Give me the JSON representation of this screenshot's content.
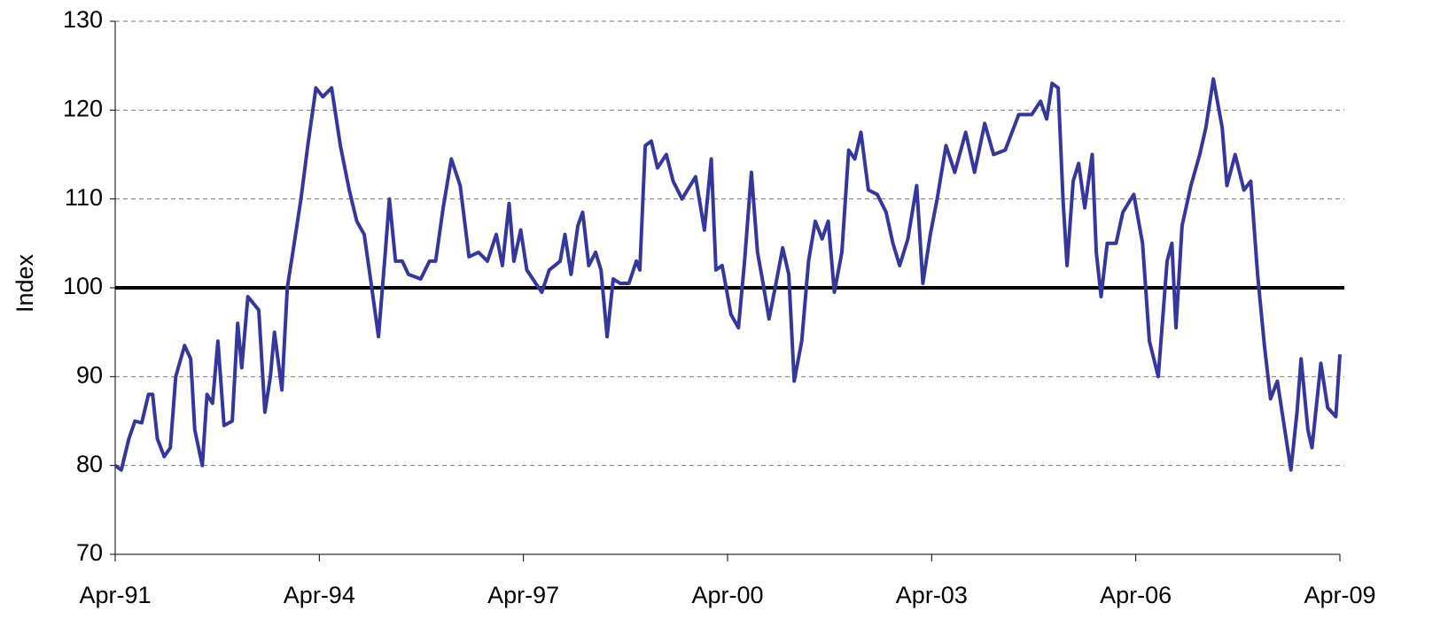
{
  "chart_data": {
    "type": "line",
    "y_label": "Index",
    "x": [
      1991.25,
      1991.34,
      1991.45,
      1991.54,
      1991.64,
      1991.74,
      1991.8,
      1991.87,
      1991.97,
      1992.06,
      1992.14,
      1992.27,
      1992.36,
      1992.42,
      1992.53,
      1992.6,
      1992.68,
      1992.76,
      1992.85,
      1992.97,
      1993.05,
      1993.11,
      1993.2,
      1993.36,
      1993.45,
      1993.53,
      1993.59,
      1993.7,
      1993.78,
      1993.87,
      1993.98,
      1994.08,
      1994.2,
      1994.3,
      1994.43,
      1994.56,
      1994.69,
      1994.8,
      1994.91,
      1995.02,
      1995.12,
      1995.22,
      1995.28,
      1995.37,
      1995.47,
      1995.56,
      1995.74,
      1995.87,
      1995.96,
      1996.07,
      1996.19,
      1996.32,
      1996.45,
      1996.59,
      1996.72,
      1996.85,
      1996.94,
      1997.04,
      1997.11,
      1997.21,
      1997.3,
      1997.43,
      1997.52,
      1997.63,
      1997.79,
      1997.86,
      1997.95,
      1998.05,
      1998.12,
      1998.21,
      1998.31,
      1998.39,
      1998.48,
      1998.57,
      1998.67,
      1998.8,
      1998.91,
      1998.96,
      1999.04,
      1999.13,
      1999.22,
      1999.35,
      1999.45,
      1999.58,
      1999.78,
      1999.91,
      2000.01,
      2000.08,
      2000.17,
      2000.3,
      2000.41,
      2000.5,
      2000.6,
      2000.69,
      2000.76,
      2000.86,
      2000.95,
      2001.06,
      2001.15,
      2001.23,
      2001.34,
      2001.44,
      2001.54,
      2001.64,
      2001.73,
      2001.82,
      2001.93,
      2002.03,
      2002.12,
      2002.21,
      2002.32,
      2002.45,
      2002.58,
      2002.68,
      2002.78,
      2002.9,
      2003.03,
      2003.12,
      2003.23,
      2003.33,
      2003.46,
      2003.59,
      2003.75,
      2003.88,
      2004.03,
      2004.16,
      2004.33,
      2004.53,
      2004.72,
      2004.85,
      2004.94,
      2005.02,
      2005.11,
      2005.18,
      2005.24,
      2005.33,
      2005.41,
      2005.5,
      2005.61,
      2005.67,
      2005.74,
      2005.83,
      2005.96,
      2006.06,
      2006.22,
      2006.35,
      2006.45,
      2006.58,
      2006.71,
      2006.78,
      2006.84,
      2006.93,
      2007.06,
      2007.19,
      2007.28,
      2007.39,
      2007.52,
      2007.59,
      2007.71,
      2007.84,
      2007.94,
      2008.04,
      2008.14,
      2008.23,
      2008.33,
      2008.42,
      2008.53,
      2008.62,
      2008.68,
      2008.78,
      2008.84,
      2008.97,
      2009.07,
      2009.19,
      2009.25
    ],
    "series": [
      {
        "color": "#35379c",
        "values": [
          80,
          79.5,
          83,
          85,
          84.8,
          88,
          88,
          83,
          81,
          82,
          90,
          93.5,
          92,
          84,
          80,
          88,
          87,
          94,
          84.5,
          85,
          96,
          91,
          99,
          97.5,
          86,
          90,
          95,
          88.5,
          100,
          104.5,
          110,
          116,
          122.5,
          121.5,
          122.5,
          116,
          111,
          107.5,
          106,
          100,
          94.5,
          104,
          110,
          103,
          103,
          101.5,
          101,
          103,
          103,
          109,
          114.5,
          111.5,
          103.5,
          104,
          103,
          106,
          102.5,
          109.5,
          103,
          106.5,
          102,
          100.5,
          99.5,
          102,
          103,
          106,
          101.5,
          107,
          108.5,
          102.5,
          104,
          102,
          94.5,
          101,
          100.5,
          100.5,
          103,
          102,
          116,
          116.5,
          113.5,
          115,
          112,
          110,
          112.5,
          106.5,
          114.5,
          102,
          102.5,
          97,
          95.5,
          103,
          113,
          104,
          101,
          96.5,
          100,
          104.5,
          101.5,
          89.5,
          94,
          103,
          107.5,
          105.5,
          107.5,
          99.5,
          104,
          115.5,
          114.5,
          117.5,
          111,
          110.5,
          108.5,
          105,
          102.5,
          105.5,
          111.5,
          100.5,
          106,
          110,
          116,
          113,
          117.5,
          113,
          118.5,
          115,
          115.5,
          119.5,
          119.5,
          121,
          119,
          123,
          122.5,
          110,
          102.5,
          112,
          114,
          109,
          115,
          104,
          99,
          105,
          105,
          108.5,
          110.5,
          105,
          94,
          90,
          103,
          105,
          95.5,
          107,
          111.5,
          115,
          118,
          123.5,
          118,
          111.5,
          115,
          111,
          112,
          101.5,
          93.5,
          87.5,
          89.5,
          85,
          79.5,
          86,
          92,
          84,
          82,
          91.5,
          86.5,
          85.5,
          92.5
        ]
      }
    ],
    "reference_line": 100,
    "reference_color": "#000000",
    "xlim": [
      1991.25,
      2009.25
    ],
    "xticks": [
      {
        "value": 1991.25,
        "label": "Apr-91"
      },
      {
        "value": 1994.25,
        "label": "Apr-94"
      },
      {
        "value": 1997.25,
        "label": "Apr-97"
      },
      {
        "value": 2000.25,
        "label": "Apr-00"
      },
      {
        "value": 2003.25,
        "label": "Apr-03"
      },
      {
        "value": 2006.25,
        "label": "Apr-06"
      },
      {
        "value": 2009.25,
        "label": "Apr-09"
      }
    ],
    "ylim": [
      70,
      130
    ],
    "yticks": [
      70,
      80,
      90,
      100,
      110,
      120,
      130
    ],
    "grid": true
  }
}
